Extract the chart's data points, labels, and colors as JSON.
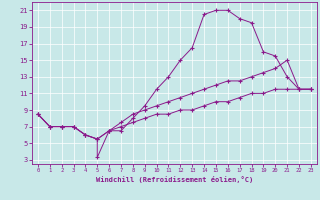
{
  "xlabel": "Windchill (Refroidissement éolien,°C)",
  "background_color": "#c8e8e8",
  "line_color": "#8b1a8b",
  "xlim": [
    -0.5,
    23.5
  ],
  "ylim": [
    2.5,
    22
  ],
  "xticks": [
    0,
    1,
    2,
    3,
    4,
    5,
    6,
    7,
    8,
    9,
    10,
    11,
    12,
    13,
    14,
    15,
    16,
    17,
    18,
    19,
    20,
    21,
    22,
    23
  ],
  "yticks": [
    3,
    5,
    7,
    9,
    11,
    13,
    15,
    17,
    19,
    21
  ],
  "series": [
    {
      "x": [
        0,
        1,
        2,
        3,
        4,
        5,
        5,
        6,
        7,
        8,
        9,
        10,
        11,
        12,
        13,
        14,
        15,
        16,
        17,
        18,
        19,
        20,
        21,
        22,
        23
      ],
      "y": [
        8.5,
        7,
        7,
        7,
        6,
        5.5,
        3.3,
        6.5,
        6.5,
        8,
        9.5,
        11.5,
        13,
        15,
        16.5,
        20.5,
        21,
        21,
        20,
        19.5,
        16,
        15.5,
        13,
        11.5,
        11.5
      ]
    },
    {
      "x": [
        0,
        1,
        2,
        3,
        4,
        5,
        6,
        7,
        8,
        9,
        10,
        11,
        12,
        13,
        14,
        15,
        16,
        17,
        18,
        19,
        20,
        21,
        22,
        23
      ],
      "y": [
        8.5,
        7,
        7,
        7,
        6,
        5.5,
        6.5,
        7.5,
        8.5,
        9,
        9.5,
        10,
        10.5,
        11,
        11.5,
        12,
        12.5,
        12.5,
        13,
        13.5,
        14,
        15,
        11.5,
        11.5
      ]
    },
    {
      "x": [
        0,
        1,
        2,
        3,
        4,
        5,
        6,
        7,
        8,
        9,
        10,
        11,
        12,
        13,
        14,
        15,
        16,
        17,
        18,
        19,
        20,
        21,
        22,
        23
      ],
      "y": [
        8.5,
        7,
        7,
        7,
        6,
        5.5,
        6.5,
        7,
        7.5,
        8,
        8.5,
        8.5,
        9,
        9,
        9.5,
        10,
        10,
        10.5,
        11,
        11,
        11.5,
        11.5,
        11.5,
        11.5
      ]
    }
  ]
}
